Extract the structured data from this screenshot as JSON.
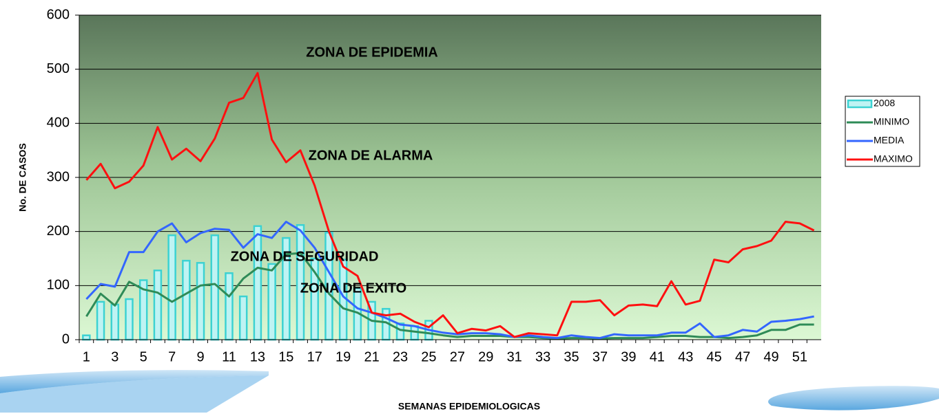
{
  "chart_data": {
    "type": "combo",
    "x_label": "SEMANAS EPIDEMIOLOGICAS",
    "y_label": "No. DE CASOS",
    "categories": [
      1,
      null,
      3,
      null,
      5,
      null,
      7,
      null,
      9,
      null,
      11,
      null,
      13,
      null,
      15,
      null,
      17,
      null,
      19,
      null,
      21,
      null,
      23,
      null,
      25,
      null,
      27,
      null,
      29,
      null,
      31,
      null,
      33,
      null,
      35,
      null,
      37,
      null,
      39,
      null,
      41,
      null,
      43,
      null,
      45,
      null,
      47,
      null,
      49,
      null,
      51,
      null
    ],
    "ylim": [
      0,
      600
    ],
    "yticks": [
      0,
      100,
      200,
      300,
      400,
      500,
      600
    ],
    "grid": true,
    "legend": "right",
    "annotations": [
      "ZONA DE EPIDEMIA",
      "ZONA DE ALARMA",
      "ZONA DE SEGURIDAD",
      "ZONA DE EXITO"
    ],
    "series": [
      {
        "name": "2008",
        "type": "bar",
        "color": "#3cd2d2",
        "values": [
          8,
          70,
          65,
          75,
          110,
          128,
          193,
          146,
          142,
          193,
          123,
          80,
          210,
          140,
          188,
          212,
          150,
          198,
          148,
          95,
          70,
          57,
          30,
          25,
          35,
          null,
          null,
          null,
          null,
          null,
          null,
          null,
          null,
          null,
          null,
          null,
          null,
          null,
          null,
          null,
          null,
          null,
          null,
          null,
          null,
          null,
          null,
          null,
          null,
          null,
          null,
          null
        ]
      },
      {
        "name": "MINIMO",
        "type": "line",
        "color": "#2e8b57",
        "values": [
          43,
          85,
          63,
          107,
          93,
          87,
          70,
          85,
          100,
          103,
          80,
          113,
          133,
          128,
          158,
          160,
          125,
          85,
          58,
          50,
          35,
          32,
          18,
          15,
          12,
          8,
          5,
          7,
          7,
          7,
          5,
          5,
          3,
          2,
          3,
          3,
          2,
          3,
          3,
          3,
          5,
          7,
          7,
          5,
          5,
          3,
          5,
          8,
          18,
          18,
          28,
          28
        ]
      },
      {
        "name": "MEDIA",
        "type": "line",
        "color": "#3366ff",
        "values": [
          75,
          103,
          98,
          162,
          162,
          200,
          215,
          180,
          197,
          205,
          203,
          170,
          195,
          188,
          218,
          202,
          170,
          125,
          80,
          58,
          50,
          40,
          28,
          25,
          18,
          13,
          10,
          12,
          12,
          10,
          5,
          8,
          5,
          3,
          8,
          5,
          3,
          10,
          8,
          8,
          8,
          13,
          13,
          30,
          5,
          8,
          18,
          15,
          33,
          35,
          38,
          43
        ]
      },
      {
        "name": "MAXIMO",
        "type": "line",
        "color": "#ff1010",
        "values": [
          295,
          325,
          280,
          292,
          322,
          393,
          333,
          353,
          330,
          372,
          438,
          447,
          493,
          370,
          328,
          350,
          285,
          200,
          135,
          118,
          50,
          45,
          48,
          33,
          23,
          45,
          12,
          20,
          17,
          25,
          5,
          12,
          10,
          8,
          70,
          70,
          73,
          45,
          63,
          65,
          62,
          108,
          65,
          72,
          148,
          143,
          167,
          173,
          183,
          218,
          215,
          202
        ]
      }
    ]
  }
}
